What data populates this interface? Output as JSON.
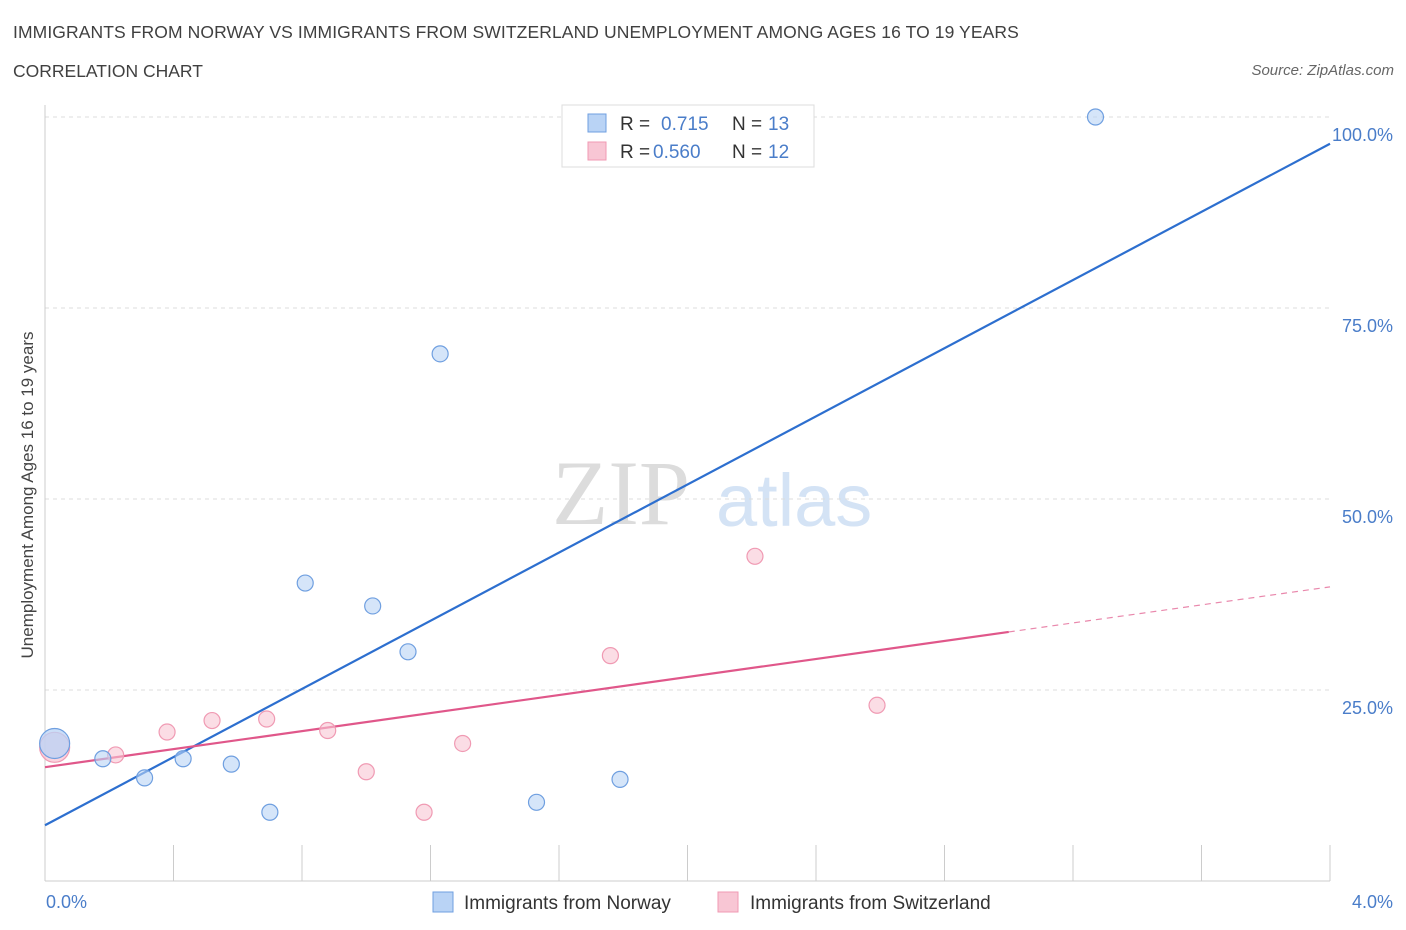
{
  "header": {
    "title": "IMMIGRANTS FROM NORWAY VS IMMIGRANTS FROM SWITZERLAND UNEMPLOYMENT AMONG AGES 16 TO 19 YEARS",
    "subtitle": "CORRELATION CHART",
    "source": "Source: ZipAtlas.com"
  },
  "watermark": {
    "zip": "ZIP",
    "atlas": "atlas"
  },
  "legend": {
    "r_label": "R =",
    "n_label": "N =",
    "rows": [
      {
        "r": "0.715",
        "n": "13"
      },
      {
        "r": "0.560",
        "n": "12"
      }
    ]
  },
  "chart_data": {
    "type": "scatter",
    "title": "IMMIGRANTS FROM NORWAY VS IMMIGRANTS FROM SWITZERLAND UNEMPLOYMENT AMONG AGES 16 TO 19 YEARS",
    "xlabel": "",
    "ylabel": "Unemployment Among Ages 16 to 19 years",
    "xlim": [
      0,
      4
    ],
    "ylim": [
      0,
      100
    ],
    "x_tick_labels": [
      "0.0%",
      "4.0%"
    ],
    "y_tick_labels": [
      "25.0%",
      "50.0%",
      "75.0%",
      "100.0%"
    ],
    "y_ticks": [
      25,
      50,
      75,
      100
    ],
    "series": [
      {
        "name": "Immigrants from Norway",
        "color": "#6f9fe0",
        "fill": "#b9d3f5",
        "line_color": "#2d6fcf",
        "points": [
          {
            "x": 0.03,
            "y": 18.0,
            "big": true
          },
          {
            "x": 0.18,
            "y": 16.0
          },
          {
            "x": 0.31,
            "y": 13.5
          },
          {
            "x": 0.43,
            "y": 16.0
          },
          {
            "x": 0.58,
            "y": 15.3
          },
          {
            "x": 0.7,
            "y": 9.0
          },
          {
            "x": 0.81,
            "y": 39.0
          },
          {
            "x": 1.02,
            "y": 36.0
          },
          {
            "x": 1.13,
            "y": 30.0
          },
          {
            "x": 1.23,
            "y": 69.0
          },
          {
            "x": 1.53,
            "y": 10.3
          },
          {
            "x": 1.79,
            "y": 13.3
          },
          {
            "x": 3.27,
            "y": 100.0
          }
        ],
        "trend": {
          "x1": 0.0,
          "y1": 7.3,
          "x2": 4.0,
          "y2": 96.5
        }
      },
      {
        "name": "Immigrants from Switzerland",
        "color": "#f09ab3",
        "fill": "#f8c6d4",
        "line_color": "#e0578a",
        "points": [
          {
            "x": 0.03,
            "y": 17.5,
            "big": true
          },
          {
            "x": 0.22,
            "y": 16.5
          },
          {
            "x": 0.38,
            "y": 19.5
          },
          {
            "x": 0.52,
            "y": 21.0
          },
          {
            "x": 0.69,
            "y": 21.2
          },
          {
            "x": 0.88,
            "y": 19.7
          },
          {
            "x": 1.0,
            "y": 14.3
          },
          {
            "x": 1.18,
            "y": 9.0
          },
          {
            "x": 1.3,
            "y": 18.0
          },
          {
            "x": 1.76,
            "y": 29.5
          },
          {
            "x": 2.21,
            "y": 42.5
          },
          {
            "x": 2.59,
            "y": 23.0
          }
        ],
        "trend": {
          "x1": 0.0,
          "y1": 14.9,
          "x2": 3.0,
          "y2": 32.6
        },
        "trend_dashed": {
          "x1": 3.0,
          "y1": 32.6,
          "x2": 4.0,
          "y2": 38.5
        }
      }
    ]
  }
}
